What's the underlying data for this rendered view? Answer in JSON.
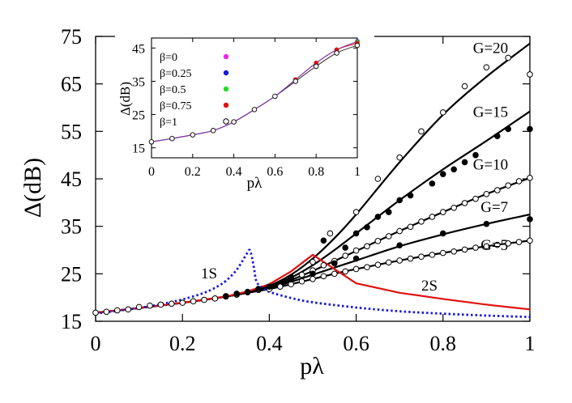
{
  "chart_data": [
    {
      "id": "main",
      "type": "line",
      "xlabel": "pλ",
      "ylabel": "Δ(dB)",
      "xlim": [
        0,
        1
      ],
      "ylim": [
        15,
        75
      ],
      "x_ticks": [
        "0",
        "0.2",
        "0.4",
        "0.6",
        "0.8",
        "1"
      ],
      "y_ticks": [
        "15",
        "25",
        "35",
        "45",
        "55",
        "65",
        "75"
      ],
      "annotations": {
        "g20": "G=20",
        "g15": "G=15",
        "g10": "G=10",
        "g7": "G=7",
        "g5": "G=5",
        "s1": "1S",
        "s2": "2S"
      },
      "curves": [
        {
          "key": "g20",
          "color": "#000000",
          "x": [
            0,
            0.1,
            0.2,
            0.3,
            0.35,
            0.4,
            0.45,
            0.5,
            0.55,
            0.6,
            0.7,
            0.8,
            0.9,
            1.0
          ],
          "y": [
            16.8,
            17.8,
            18.9,
            20.2,
            21.2,
            22.5,
            24.8,
            28.2,
            32.5,
            37.5,
            48.5,
            58.5,
            66.5,
            73.5
          ]
        },
        {
          "key": "g15",
          "color": "#000000",
          "x": [
            0,
            0.1,
            0.2,
            0.3,
            0.35,
            0.4,
            0.45,
            0.5,
            0.55,
            0.6,
            0.7,
            0.8,
            0.9,
            1.0
          ],
          "y": [
            16.8,
            17.8,
            18.9,
            20.2,
            21.2,
            22.4,
            24.2,
            26.8,
            30.0,
            33.5,
            40.5,
            47.0,
            53.0,
            59.2
          ]
        },
        {
          "key": "g10",
          "color": "#000000",
          "x": [
            0,
            0.1,
            0.2,
            0.3,
            0.35,
            0.4,
            0.45,
            0.5,
            0.55,
            0.6,
            0.7,
            0.8,
            0.9,
            1.0
          ],
          "y": [
            16.8,
            17.8,
            18.9,
            20.2,
            21.1,
            22.2,
            23.7,
            25.6,
            27.7,
            29.8,
            34.0,
            38.0,
            41.8,
            45.2
          ]
        },
        {
          "key": "g7",
          "color": "#000000",
          "x": [
            0,
            0.1,
            0.2,
            0.3,
            0.35,
            0.4,
            0.45,
            0.5,
            0.55,
            0.6,
            0.7,
            0.8,
            0.9,
            1.0
          ],
          "y": [
            16.8,
            17.8,
            18.9,
            20.2,
            21.0,
            22.0,
            23.3,
            24.8,
            26.3,
            27.8,
            30.8,
            33.3,
            35.5,
            37.5
          ]
        },
        {
          "key": "g5",
          "color": "#000000",
          "x": [
            0,
            0.1,
            0.2,
            0.3,
            0.35,
            0.4,
            0.45,
            0.5,
            0.55,
            0.6,
            0.7,
            0.8,
            0.9,
            1.0
          ],
          "y": [
            16.8,
            17.8,
            18.9,
            20.2,
            21.0,
            21.8,
            22.8,
            23.9,
            25.0,
            26.0,
            27.8,
            29.4,
            30.8,
            32.0
          ]
        },
        {
          "key": "s2",
          "color": "#e01010",
          "x": [
            0,
            0.1,
            0.2,
            0.3,
            0.35,
            0.4,
            0.45,
            0.5,
            0.55,
            0.6,
            0.7,
            0.8,
            0.9,
            1.0
          ],
          "y": [
            16.8,
            17.8,
            18.9,
            20.2,
            21.3,
            22.8,
            25.5,
            29.0,
            26.0,
            23.0,
            21.0,
            19.7,
            18.5,
            17.5
          ]
        }
      ],
      "dotted": {
        "key": "s1",
        "color": "#1a1ad9",
        "x": [
          0,
          0.05,
          0.1,
          0.15,
          0.2,
          0.25,
          0.28,
          0.3,
          0.32,
          0.33,
          0.34,
          0.35,
          0.355,
          0.36,
          0.365,
          0.37,
          0.38,
          0.4,
          0.45,
          0.5,
          0.6,
          0.7,
          0.8,
          0.9,
          1.0
        ],
        "y": [
          16.6,
          17.2,
          17.8,
          18.6,
          19.6,
          21.0,
          22.3,
          23.5,
          25.3,
          26.5,
          28.0,
          29.5,
          30.0,
          28.5,
          26.0,
          23.5,
          22.3,
          21.2,
          19.9,
          19.0,
          17.9,
          17.1,
          16.6,
          16.2,
          15.9
        ]
      },
      "open_points": [
        [
          0,
          16.8
        ],
        [
          0.025,
          17.0
        ],
        [
          0.05,
          17.3
        ],
        [
          0.075,
          17.5
        ],
        [
          0.1,
          18.0
        ],
        [
          0.125,
          18.3
        ],
        [
          0.15,
          18.5
        ],
        [
          0.175,
          18.7
        ],
        [
          0.2,
          18.9
        ],
        [
          0.225,
          19.2
        ],
        [
          0.25,
          19.5
        ],
        [
          0.275,
          19.8
        ],
        [
          0.3,
          20.2
        ],
        [
          0.325,
          20.6
        ],
        [
          0.35,
          21.1
        ],
        [
          0.375,
          21.6
        ],
        [
          0.5,
          27.5
        ],
        [
          0.54,
          33.5
        ],
        [
          0.6,
          38.0
        ],
        [
          0.65,
          45.0
        ],
        [
          0.7,
          49.5
        ],
        [
          0.75,
          55.0
        ],
        [
          0.8,
          59.0
        ],
        [
          0.85,
          64.5
        ],
        [
          0.9,
          68.5
        ],
        [
          0.95,
          70.5
        ],
        [
          1.0,
          67.0
        ],
        [
          0.45,
          23.8
        ],
        [
          0.475,
          24.8
        ],
        [
          0.5,
          25.7
        ],
        [
          0.525,
          26.8
        ],
        [
          0.55,
          27.7
        ],
        [
          0.575,
          28.8
        ],
        [
          0.6,
          29.9
        ],
        [
          0.625,
          30.8
        ],
        [
          0.65,
          31.9
        ],
        [
          0.675,
          32.9
        ],
        [
          0.7,
          34.0
        ],
        [
          0.725,
          34.9
        ],
        [
          0.75,
          36.0
        ],
        [
          0.775,
          37.0
        ],
        [
          0.8,
          38.0
        ],
        [
          0.825,
          38.9
        ],
        [
          0.85,
          39.9
        ],
        [
          0.875,
          40.8
        ],
        [
          0.9,
          41.8
        ],
        [
          0.925,
          42.6
        ],
        [
          0.95,
          43.6
        ],
        [
          0.975,
          44.5
        ],
        [
          1.0,
          45.2
        ],
        [
          0.4,
          21.8
        ],
        [
          0.425,
          22.3
        ],
        [
          0.45,
          22.8
        ],
        [
          0.475,
          23.4
        ],
        [
          0.5,
          23.9
        ],
        [
          0.525,
          24.5
        ],
        [
          0.55,
          25.0
        ],
        [
          0.575,
          25.5
        ],
        [
          0.6,
          26.0
        ],
        [
          0.625,
          26.4
        ],
        [
          0.65,
          26.9
        ],
        [
          0.675,
          27.4
        ],
        [
          0.7,
          27.8
        ],
        [
          0.725,
          28.2
        ],
        [
          0.75,
          28.6
        ],
        [
          0.775,
          29.0
        ],
        [
          0.8,
          29.4
        ],
        [
          0.825,
          29.7
        ],
        [
          0.85,
          30.1
        ],
        [
          0.875,
          30.5
        ],
        [
          0.9,
          30.8
        ],
        [
          0.925,
          31.1
        ],
        [
          0.95,
          31.4
        ],
        [
          0.975,
          31.7
        ],
        [
          1.0,
          32.0
        ]
      ],
      "filled_points": [
        [
          0.35,
          21.2
        ],
        [
          0.375,
          21.8
        ],
        [
          0.45,
          24.3
        ],
        [
          0.525,
          32.0
        ],
        [
          0.575,
          30.5
        ],
        [
          0.6,
          33.5
        ],
        [
          0.625,
          34.8
        ],
        [
          0.65,
          37.0
        ],
        [
          0.675,
          38.0
        ],
        [
          0.7,
          40.5
        ],
        [
          0.725,
          41.5
        ],
        [
          0.775,
          44.0
        ],
        [
          0.8,
          46.0
        ],
        [
          0.825,
          47.0
        ],
        [
          0.85,
          48.5
        ],
        [
          0.875,
          50.0
        ],
        [
          0.925,
          54.0
        ],
        [
          0.95,
          55.5
        ],
        [
          1.0,
          55.5
        ],
        [
          0.3,
          20.3
        ],
        [
          0.325,
          20.8
        ],
        [
          0.4,
          22.3
        ],
        [
          0.45,
          23.8
        ],
        [
          0.5,
          25.0
        ],
        [
          0.55,
          27.2
        ],
        [
          0.6,
          28.2
        ],
        [
          0.7,
          31.0
        ],
        [
          0.8,
          33.5
        ],
        [
          0.9,
          35.5
        ],
        [
          1.0,
          36.5
        ]
      ],
      "label_positions": {
        "g20": [
          0.95,
          71.5
        ],
        "g15": [
          0.95,
          58.0
        ],
        "g10": [
          0.95,
          47.0
        ],
        "g7": [
          0.95,
          38.0
        ],
        "g5": [
          0.95,
          30.0
        ],
        "s1": [
          0.28,
          24.0
        ],
        "s2": [
          0.75,
          21.5
        ]
      }
    },
    {
      "id": "inset",
      "type": "scatter",
      "xlabel": "pλ",
      "ylabel": "Δ(dB)",
      "xlim": [
        0,
        1
      ],
      "ylim": [
        12,
        48
      ],
      "x_ticks": [
        "0",
        "0.2",
        "0.4",
        "0.6",
        "0.8",
        "1"
      ],
      "y_ticks": [
        "15",
        "25",
        "35",
        "45"
      ],
      "curve": {
        "x": [
          0,
          0.1,
          0.2,
          0.3,
          0.4,
          0.5,
          0.6,
          0.7,
          0.8,
          0.9,
          1.0
        ],
        "y": [
          16.8,
          17.8,
          18.9,
          20.2,
          22.8,
          26.5,
          30.5,
          35.5,
          40.5,
          44.5,
          46.5
        ]
      },
      "series": [
        {
          "name": "β=0",
          "color": "#ee22ee",
          "x": [
            0,
            0.1,
            0.2,
            0.3,
            0.4,
            0.5,
            0.6,
            0.7,
            0.8,
            0.9,
            1.0
          ],
          "y": [
            16.8,
            17.8,
            18.9,
            20.2,
            22.8,
            26.5,
            30.5,
            35.5,
            40.5,
            44.5,
            47.0
          ]
        },
        {
          "name": "β=0.25",
          "color": "#1a1ad9",
          "x": [
            0,
            0.1,
            0.2,
            0.3,
            0.4,
            0.5,
            0.6,
            0.7,
            0.8,
            0.9,
            1.0
          ],
          "y": [
            16.8,
            17.8,
            18.9,
            20.2,
            22.8,
            26.5,
            30.5,
            35.5,
            40.5,
            44.5,
            47.0
          ]
        },
        {
          "name": "β=0.5",
          "color": "#22dd22",
          "x": [
            0,
            0.1,
            0.2,
            0.3,
            0.4,
            0.5,
            0.6,
            0.7,
            0.8,
            0.9,
            1.0
          ],
          "y": [
            16.8,
            17.8,
            18.9,
            20.2,
            22.8,
            26.5,
            30.5,
            35.5,
            40.5,
            44.5,
            46.8
          ]
        },
        {
          "name": "β=0.75",
          "color": "#e01010",
          "x": [
            0,
            0.1,
            0.2,
            0.3,
            0.4,
            0.5,
            0.6,
            0.7,
            0.8,
            0.9,
            1.0
          ],
          "y": [
            16.8,
            17.8,
            18.9,
            20.2,
            22.8,
            26.5,
            30.5,
            35.5,
            40.5,
            44.5,
            46.5
          ]
        },
        {
          "name": "β=1",
          "color": "#000000",
          "open": true,
          "x": [
            0,
            0.1,
            0.2,
            0.3,
            0.4,
            0.5,
            0.6,
            0.7,
            0.8,
            0.9,
            1.0
          ],
          "y": [
            16.8,
            17.8,
            18.9,
            20.2,
            22.8,
            26.5,
            30.5,
            35.0,
            39.5,
            43.5,
            45.8
          ]
        }
      ]
    }
  ]
}
